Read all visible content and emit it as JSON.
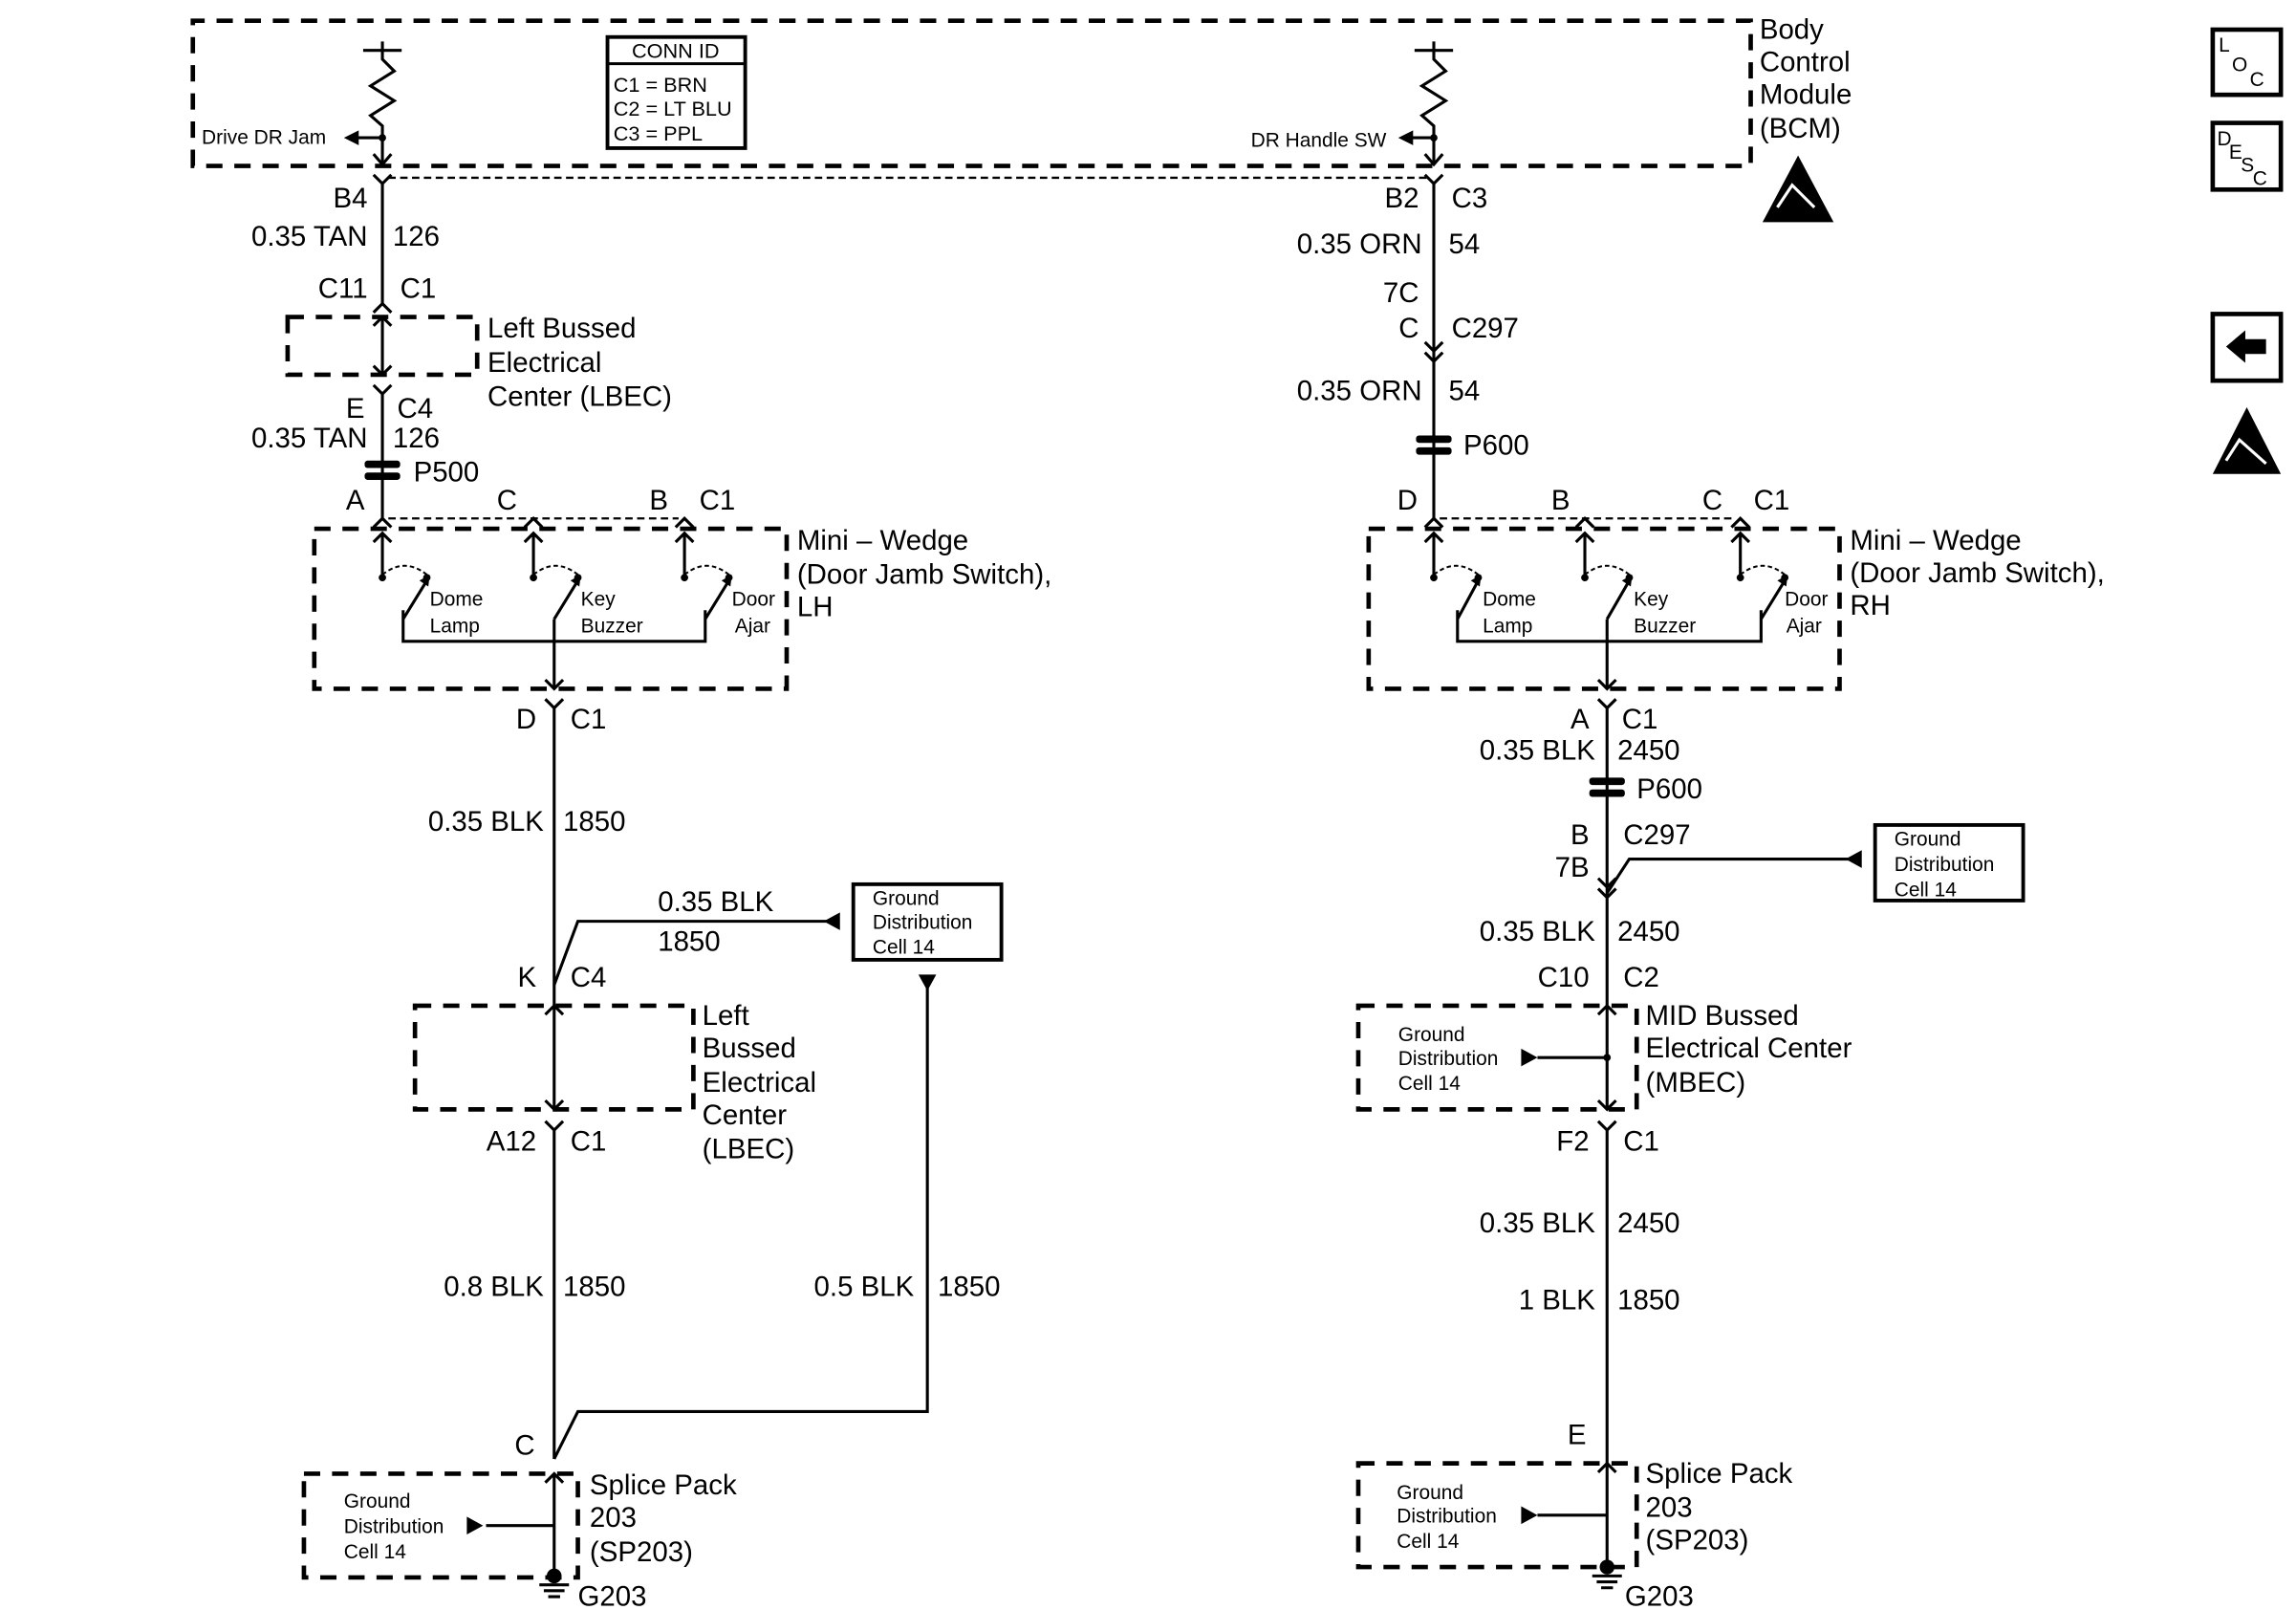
{
  "bcm": {
    "title": [
      "Body",
      "Control",
      "Module",
      "(BCM)"
    ],
    "drive_dr_jam": "Drive DR Jam",
    "dr_handle_sw": "DR Handle SW"
  },
  "conn_id": {
    "header": "CONN ID",
    "rows": [
      "C1 = BRN",
      "C2 = LT BLU",
      "C3 = PPL"
    ]
  },
  "left": {
    "b4": "B4",
    "w1_gauge": "0.35 TAN",
    "w1_circuit": "126",
    "c11": "C11",
    "c1a": "C1",
    "lbec1": [
      "Left Bussed",
      "Electrical",
      "Center (LBEC)"
    ],
    "e": "E",
    "c4a": "C4",
    "w2_gauge": "0.35 TAN",
    "w2_circuit": "126",
    "p500": "P500",
    "pin_a": "A",
    "pin_c": "C",
    "pin_b": "B",
    "c1b": "C1",
    "wedge": [
      "Mini – Wedge",
      "(Door Jamb Switch),",
      "LH"
    ],
    "sw_dome": [
      "Dome",
      "Lamp"
    ],
    "sw_key": [
      "Key",
      "Buzzer"
    ],
    "sw_door": [
      "Door",
      "Ajar"
    ],
    "d": "D",
    "c1c": "C1",
    "w3_gauge": "0.35 BLK",
    "w3_circuit": "1850",
    "branch_gauge": "0.35 BLK",
    "branch_circuit": "1850",
    "gnd_ref": [
      "Ground",
      "Distribution",
      "Cell 14"
    ],
    "k": "K",
    "c4b": "C4",
    "lbec2": [
      "Left",
      "Bussed",
      "Electrical",
      "Center",
      "(LBEC)"
    ],
    "a12": "A12",
    "c1d": "C1",
    "w4_gauge": "0.8 BLK",
    "w4_circuit": "1850",
    "w5_gauge": "0.5 BLK",
    "w5_circuit": "1850",
    "c": "C",
    "splice": [
      "Splice Pack",
      "203",
      "(SP203)"
    ],
    "splice_gnd": [
      "Ground",
      "Distribution",
      "Cell 14"
    ],
    "g203": "G203"
  },
  "right": {
    "b2": "B2",
    "c3": "C3",
    "w1_gauge": "0.35 ORN",
    "w1_circuit": "54",
    "7c": "7C",
    "c": "C",
    "c297a": "C297",
    "w2_gauge": "0.35 ORN",
    "w2_circuit": "54",
    "p600a": "P600",
    "pin_d": "D",
    "pin_b": "B",
    "pin_c": "C",
    "c1a": "C1",
    "wedge": [
      "Mini – Wedge",
      "(Door Jamb Switch),",
      "RH"
    ],
    "sw_dome": [
      "Dome",
      "Lamp"
    ],
    "sw_key": [
      "Key",
      "Buzzer"
    ],
    "sw_door": [
      "Door",
      "Ajar"
    ],
    "a": "A",
    "c1b": "C1",
    "w3_gauge": "0.35 BLK",
    "w3_circuit": "2450",
    "p600b": "P600",
    "b": "B",
    "c297b": "C297",
    "7b": "7B",
    "gnd_ref": [
      "Ground",
      "Distribution",
      "Cell 14"
    ],
    "w4_gauge": "0.35 BLK",
    "w4_circuit": "2450",
    "c10": "C10",
    "c2": "C2",
    "mbec": [
      "MID Bussed",
      "Electrical Center",
      "(MBEC)"
    ],
    "mbec_gnd": [
      "Ground",
      "Distribution",
      "Cell 14"
    ],
    "f2": "F2",
    "c1c": "C1",
    "w5_gauge": "0.35 BLK",
    "w5_circuit": "2450",
    "w6_gauge": "1 BLK",
    "w6_circuit": "1850",
    "e": "E",
    "splice": [
      "Splice Pack",
      "203",
      "(SP203)"
    ],
    "splice_gnd": [
      "Ground",
      "Distribution",
      "Cell 14"
    ],
    "g203": "G203"
  },
  "side_icons": {
    "loc": [
      "L",
      "O",
      "C"
    ],
    "desc": [
      "D",
      "E",
      "S",
      "C"
    ],
    "icons": [
      "loc-icon",
      "desc-icon",
      "back-arrow-icon",
      "esd-warning-icon"
    ]
  }
}
